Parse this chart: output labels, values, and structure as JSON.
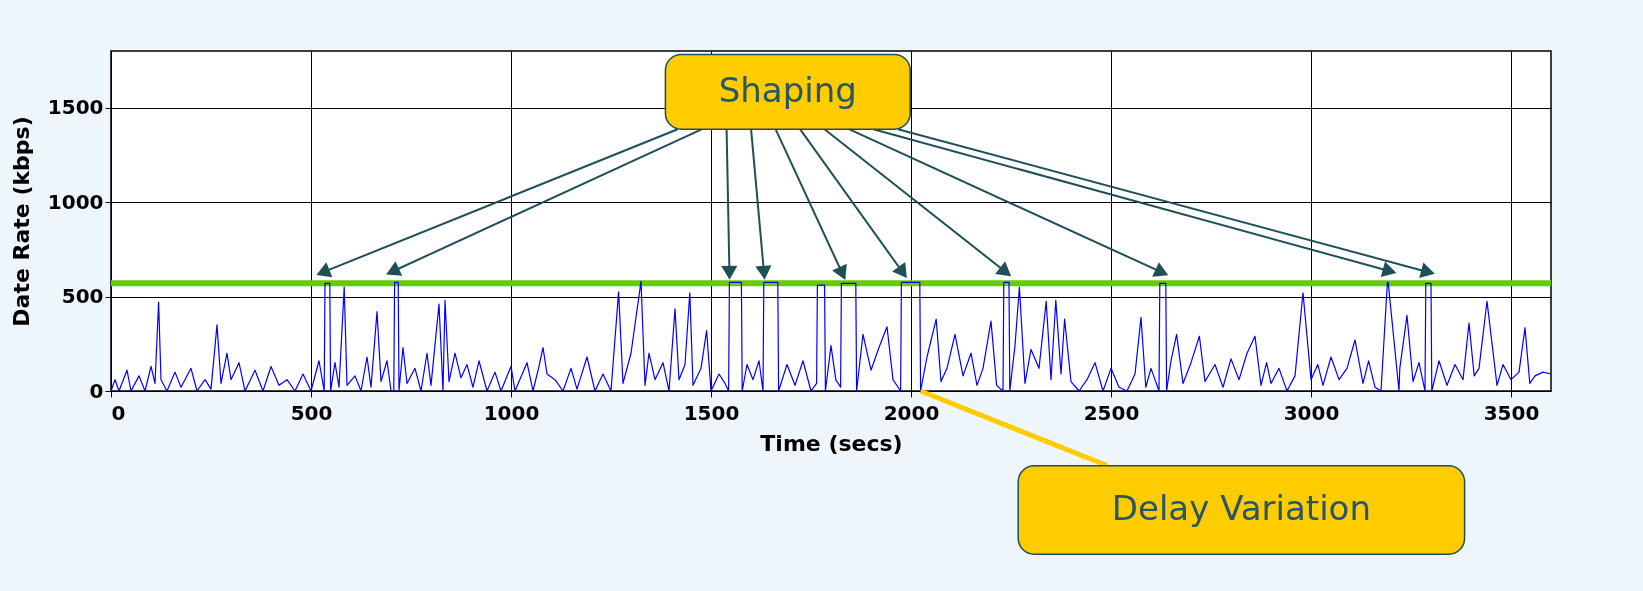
{
  "chart_data": {
    "type": "line",
    "xlabel": "Time (secs)",
    "ylabel": "Date Rate (kbps)",
    "xlim": [
      0,
      3600
    ],
    "xticks": [
      0,
      500,
      1000,
      1500,
      2000,
      2500,
      3000,
      3500
    ],
    "ylim": [
      0,
      1800
    ],
    "yticks": [
      0,
      500,
      1000,
      1500
    ],
    "grid": true,
    "marker": "none",
    "line_style": "solid",
    "ref_lines": [
      {
        "axis": "y",
        "value": 570,
        "color": "#66cc00"
      }
    ],
    "annotations": [
      "Shaping",
      {
        "text": "Delay Variation",
        "x": 2024,
        "y": 0
      }
    ],
    "series": [
      {
        "color": "#0000ff",
        "x": [
          0,
          10,
          20,
          40,
          50,
          70,
          85,
          100,
          110,
          119,
          125,
          140,
          160,
          175,
          200,
          215,
          235,
          250,
          265,
          275,
          290,
          300,
          320,
          335,
          360,
          380,
          400,
          420,
          440,
          460,
          480,
          500,
          520,
          533,
          535,
          547,
          549,
          560,
          570,
          583,
          590,
          610,
          625,
          640,
          650,
          665,
          675,
          690,
          700,
          707,
          709,
          718,
          720,
          730,
          740,
          760,
          775,
          790,
          800,
          820,
          830,
          835,
          845,
          860,
          875,
          890,
          905,
          920,
          940,
          960,
          975,
          1000,
          1010,
          1040,
          1055,
          1070,
          1080,
          1090,
          1110,
          1130,
          1150,
          1165,
          1190,
          1210,
          1230,
          1250,
          1269,
          1280,
          1300,
          1325,
          1335,
          1345,
          1360,
          1380,
          1395,
          1410,
          1420,
          1435,
          1447,
          1455,
          1475,
          1489,
          1500,
          1520,
          1535,
          1544,
          1546,
          1576,
          1578,
          1590,
          1605,
          1620,
          1630,
          1632,
          1667,
          1669,
          1690,
          1710,
          1730,
          1750,
          1764,
          1766,
          1784,
          1786,
          1800,
          1812,
          1824,
          1826,
          1862,
          1864,
          1880,
          1900,
          1920,
          1940,
          1955,
          1974,
          1976,
          2022,
          2024,
          2040,
          2063,
          2075,
          2090,
          2110,
          2130,
          2150,
          2165,
          2180,
          2200,
          2214,
          2230,
          2232,
          2245,
          2247,
          2260,
          2271,
          2285,
          2300,
          2320,
          2338,
          2350,
          2362,
          2375,
          2384,
          2400,
          2420,
          2440,
          2460,
          2480,
          2500,
          2520,
          2540,
          2560,
          2575,
          2587,
          2600,
          2620,
          2622,
          2637,
          2639,
          2650,
          2664,
          2680,
          2700,
          2721,
          2735,
          2760,
          2780,
          2800,
          2820,
          2840,
          2860,
          2875,
          2889,
          2900,
          2920,
          2940,
          2960,
          2980,
          3000,
          3017,
          3030,
          3050,
          3070,
          3090,
          3110,
          3130,
          3144,
          3160,
          3175,
          3191,
          3193,
          3220,
          3222,
          3240,
          3255,
          3270,
          3285,
          3287,
          3300,
          3302,
          3320,
          3340,
          3360,
          3380,
          3395,
          3408,
          3420,
          3440,
          3465,
          3480,
          3500,
          3520,
          3535,
          3547,
          3560,
          3580,
          3600
        ],
        "values": [
          0,
          60,
          0,
          110,
          0,
          80,
          0,
          130,
          40,
          470,
          60,
          0,
          100,
          20,
          120,
          0,
          60,
          10,
          350,
          40,
          200,
          60,
          150,
          0,
          110,
          0,
          130,
          30,
          60,
          0,
          90,
          0,
          160,
          0,
          570,
          570,
          0,
          150,
          20,
          550,
          30,
          80,
          0,
          180,
          20,
          420,
          50,
          160,
          0,
          0,
          575,
          575,
          0,
          230,
          40,
          120,
          0,
          200,
          30,
          460,
          0,
          480,
          50,
          200,
          70,
          140,
          20,
          160,
          0,
          100,
          0,
          130,
          0,
          150,
          0,
          130,
          230,
          90,
          60,
          0,
          120,
          10,
          180,
          0,
          90,
          0,
          525,
          40,
          200,
          580,
          30,
          200,
          60,
          150,
          0,
          435,
          60,
          140,
          520,
          30,
          120,
          320,
          0,
          90,
          40,
          0,
          575,
          575,
          0,
          140,
          60,
          160,
          0,
          575,
          575,
          0,
          140,
          30,
          160,
          0,
          40,
          560,
          560,
          0,
          240,
          60,
          20,
          570,
          570,
          0,
          300,
          110,
          230,
          340,
          60,
          0,
          575,
          575,
          0,
          180,
          380,
          50,
          120,
          300,
          80,
          200,
          30,
          120,
          370,
          30,
          0,
          575,
          575,
          0,
          240,
          550,
          40,
          220,
          120,
          475,
          60,
          480,
          90,
          380,
          50,
          0,
          60,
          150,
          0,
          120,
          20,
          0,
          90,
          390,
          20,
          120,
          0,
          570,
          570,
          0,
          160,
          300,
          40,
          150,
          290,
          50,
          140,
          20,
          170,
          60,
          200,
          290,
          30,
          150,
          40,
          120,
          0,
          80,
          520,
          60,
          140,
          30,
          180,
          60,
          120,
          270,
          40,
          160,
          20,
          0,
          575,
          575,
          0,
          120,
          400,
          50,
          150,
          0,
          570,
          570,
          0,
          160,
          30,
          140,
          60,
          360,
          80,
          120,
          475,
          30,
          140,
          60,
          100,
          335,
          40,
          80,
          100,
          90
        ]
      }
    ]
  }
}
